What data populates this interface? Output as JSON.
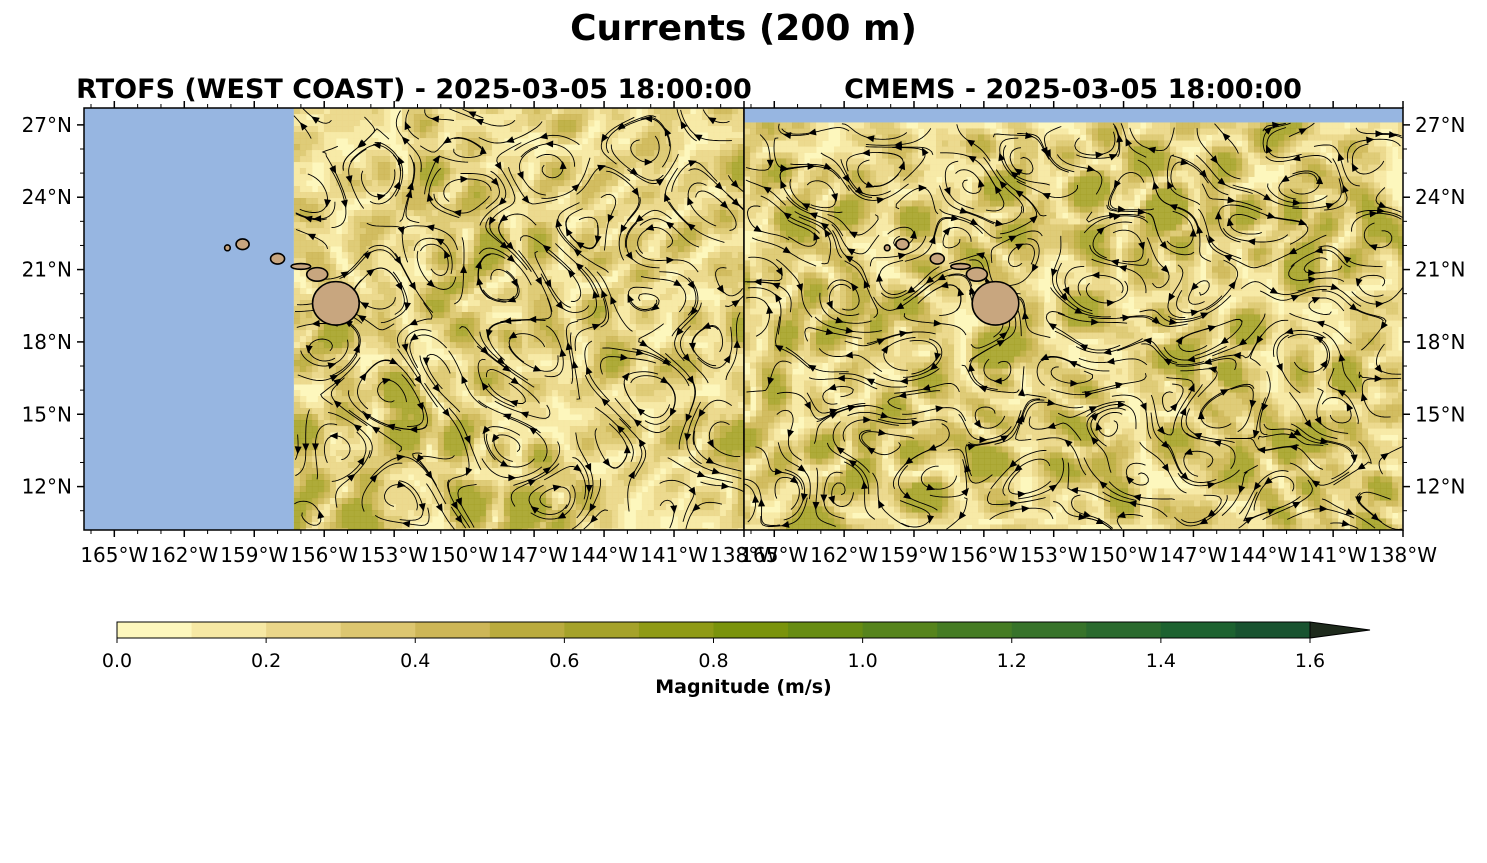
{
  "figure": {
    "title": "Currents (200 m)"
  },
  "panels": [
    {
      "id": "rtofs",
      "title": "RTOFS (WEST COAST) - 2025-03-05 18:00:00",
      "lat_ticks": [
        "27°N",
        "24°N",
        "21°N",
        "18°N",
        "15°N",
        "12°N"
      ],
      "lon_ticks": [
        "165°W",
        "162°W",
        "159°W",
        "156°W",
        "153°W",
        "150°W",
        "147°W",
        "144°W",
        "141°W",
        "138°W"
      ],
      "lat_axis_side": "left",
      "extent": {
        "lon": [
          -166.3,
          -138
        ],
        "lat": [
          10.2,
          27.7
        ]
      },
      "data_extent_lon": [
        -157.3,
        -138
      ],
      "no_data_color": "#97b6e1"
    },
    {
      "id": "cmems",
      "title": "CMEMS - 2025-03-05 18:00:00",
      "lat_ticks": [
        "27°N",
        "24°N",
        "21°N",
        "18°N",
        "15°N",
        "12°N"
      ],
      "lon_ticks": [
        "165°W",
        "162°W",
        "159°W",
        "156°W",
        "153°W",
        "150°W",
        "147°W",
        "144°W",
        "141°W",
        "138°W"
      ],
      "lat_axis_side": "right",
      "extent": {
        "lon": [
          -166.3,
          -138
        ],
        "lat": [
          10.2,
          27.7
        ]
      },
      "data_extent_lat": [
        10.2,
        27.1
      ],
      "no_data_color": "#97b6e1"
    }
  ],
  "land": {
    "color": "#c8a67f",
    "islands": [
      "Kauai",
      "Oahu",
      "Molokai",
      "Maui",
      "Hawaii"
    ]
  },
  "colorbar": {
    "label": "Magnitude (m/s)",
    "tick_labels": [
      "0.0",
      "0.2",
      "0.4",
      "0.6",
      "0.8",
      "1.0",
      "1.2",
      "1.4",
      "1.6"
    ],
    "range": [
      0,
      1.6
    ],
    "step": 0.1,
    "extend": "max",
    "colors": [
      "#fdf7bd",
      "#f6e8a4",
      "#ead68a",
      "#dcc670",
      "#cdb657",
      "#baab3e",
      "#a5a22a",
      "#8f9a16",
      "#7a930c",
      "#678c12",
      "#56841c",
      "#457c24",
      "#37732a",
      "#2a6a2e",
      "#1d6230",
      "#185330",
      "#1c482e",
      "#1f3d2b",
      "#222f22",
      "#1e2a1c"
    ]
  }
}
